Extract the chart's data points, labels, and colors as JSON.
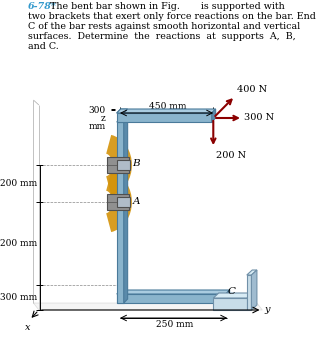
{
  "title_number": "6-78*",
  "title_color": "#3399cc",
  "fig_bg": "#ffffff",
  "bar_color_front": "#8ab4cc",
  "bar_color_top": "#aacce0",
  "bar_color_side": "#5a8aaa",
  "bar_edge_color": "#4a7a9a",
  "bracket_fill": "#909090",
  "bracket_edge": "#505050",
  "bracket_highlight": "#b0bcc8",
  "fan_color": "#d4930a",
  "surface_color_top": "#c8dde8",
  "surface_color_side": "#a0bcd0",
  "surface_edge": "#7090a8",
  "dim_color": "#000000",
  "force_color": "#8b0000",
  "axis_color": "#000000",
  "label_A": "A",
  "label_B": "B",
  "label_C": "C",
  "force_400": "400 N",
  "force_300": "300 N",
  "force_200": "200 N",
  "dim_450": "450 mm",
  "dim_300z": "300",
  "dim_z": "z",
  "dim_mm": "mm",
  "dim_200a": "200 mm",
  "dim_200b": "200 mm",
  "dim_300": "300 mm",
  "dim_250": "250 mm",
  "axis_x": "x",
  "axis_y": "y",
  "text_line1": "The bent bar shown in Fig.       is supported with",
  "text_line2": "two brackets that exert only force reactions on the bar. End",
  "text_line3": "C of the bar rests against smooth horizontal and vertical",
  "text_line4": "surfaces.  Determine  the  reactions  at  supports  A,  B,",
  "text_line5": "and C."
}
